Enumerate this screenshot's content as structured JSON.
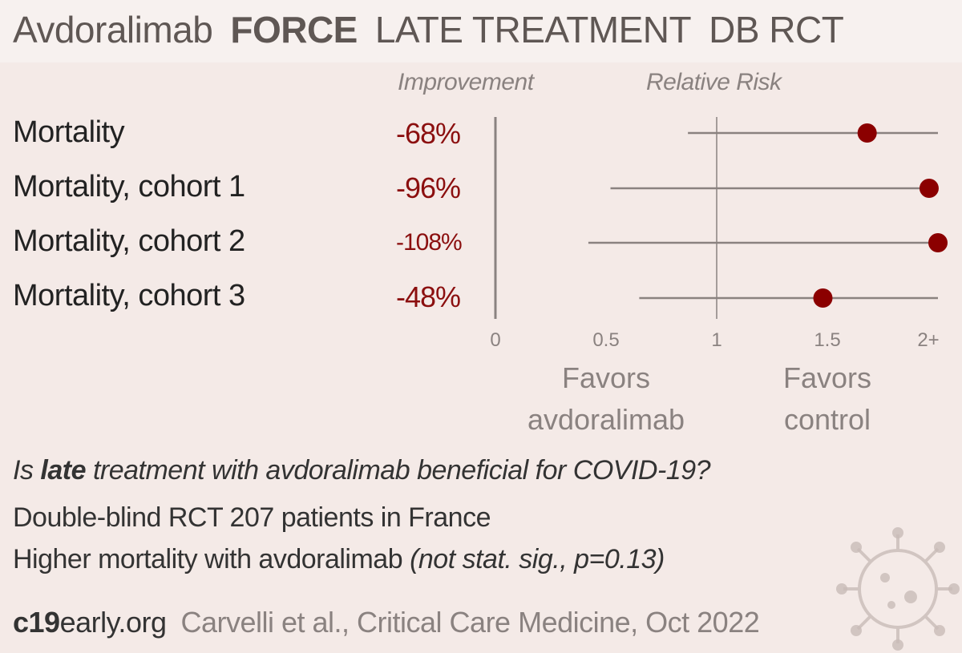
{
  "header": {
    "drug": "Avdoralimab",
    "trial": "FORCE",
    "stage": "LATE TREATMENT",
    "design": "DB RCT"
  },
  "columns": {
    "improvement": "Improvement",
    "relative_risk": "Relative Risk"
  },
  "favors": {
    "left": [
      "Favors",
      "avdoralimab"
    ],
    "right": [
      "Favors",
      "control"
    ]
  },
  "summary": {
    "question_pre": "Is ",
    "question_bold": "late",
    "question_post": " treatment with avdoralimab beneficial for COVID-19?",
    "design_line": "Double-blind RCT 207 patients in France",
    "result_main": "Higher mortality with avdoralimab ",
    "result_note": "(not stat. sig., p=0.13)"
  },
  "footer": {
    "site_bold": "c19",
    "site_rest": "early.org",
    "citation": "Carvelli et al., Critical Care Medicine, Oct 2022"
  },
  "colors": {
    "point": "#8b0000",
    "improvement_text": "#8b0f0f",
    "axis": "#8a8280",
    "background": "#f4eae7"
  },
  "icon": "coronavirus-watermark-icon",
  "chart_data": {
    "type": "forest",
    "xlabel": "",
    "ylabel": "",
    "xlim": [
      0,
      2
    ],
    "ticks": [
      0,
      0.5,
      1,
      1.5,
      2
    ],
    "tick_labels": [
      "0",
      "0.5",
      "1",
      "1.5",
      "2+"
    ],
    "reference_line": 1,
    "rows": [
      {
        "label": "Mortality",
        "improvement": "-68%",
        "rr": 1.68,
        "ci_low": 0.87,
        "ci_high": 2.0
      },
      {
        "label": "Mortality, cohort 1",
        "improvement": "-96%",
        "rr": 1.96,
        "ci_low": 0.52,
        "ci_high": 2.0
      },
      {
        "label": "Mortality, cohort 2",
        "improvement": "-108%",
        "rr": 2.0,
        "ci_low": 0.42,
        "ci_high": 2.0
      },
      {
        "label": "Mortality, cohort 3",
        "improvement": "-48%",
        "rr": 1.48,
        "ci_low": 0.65,
        "ci_high": 2.0
      }
    ]
  }
}
